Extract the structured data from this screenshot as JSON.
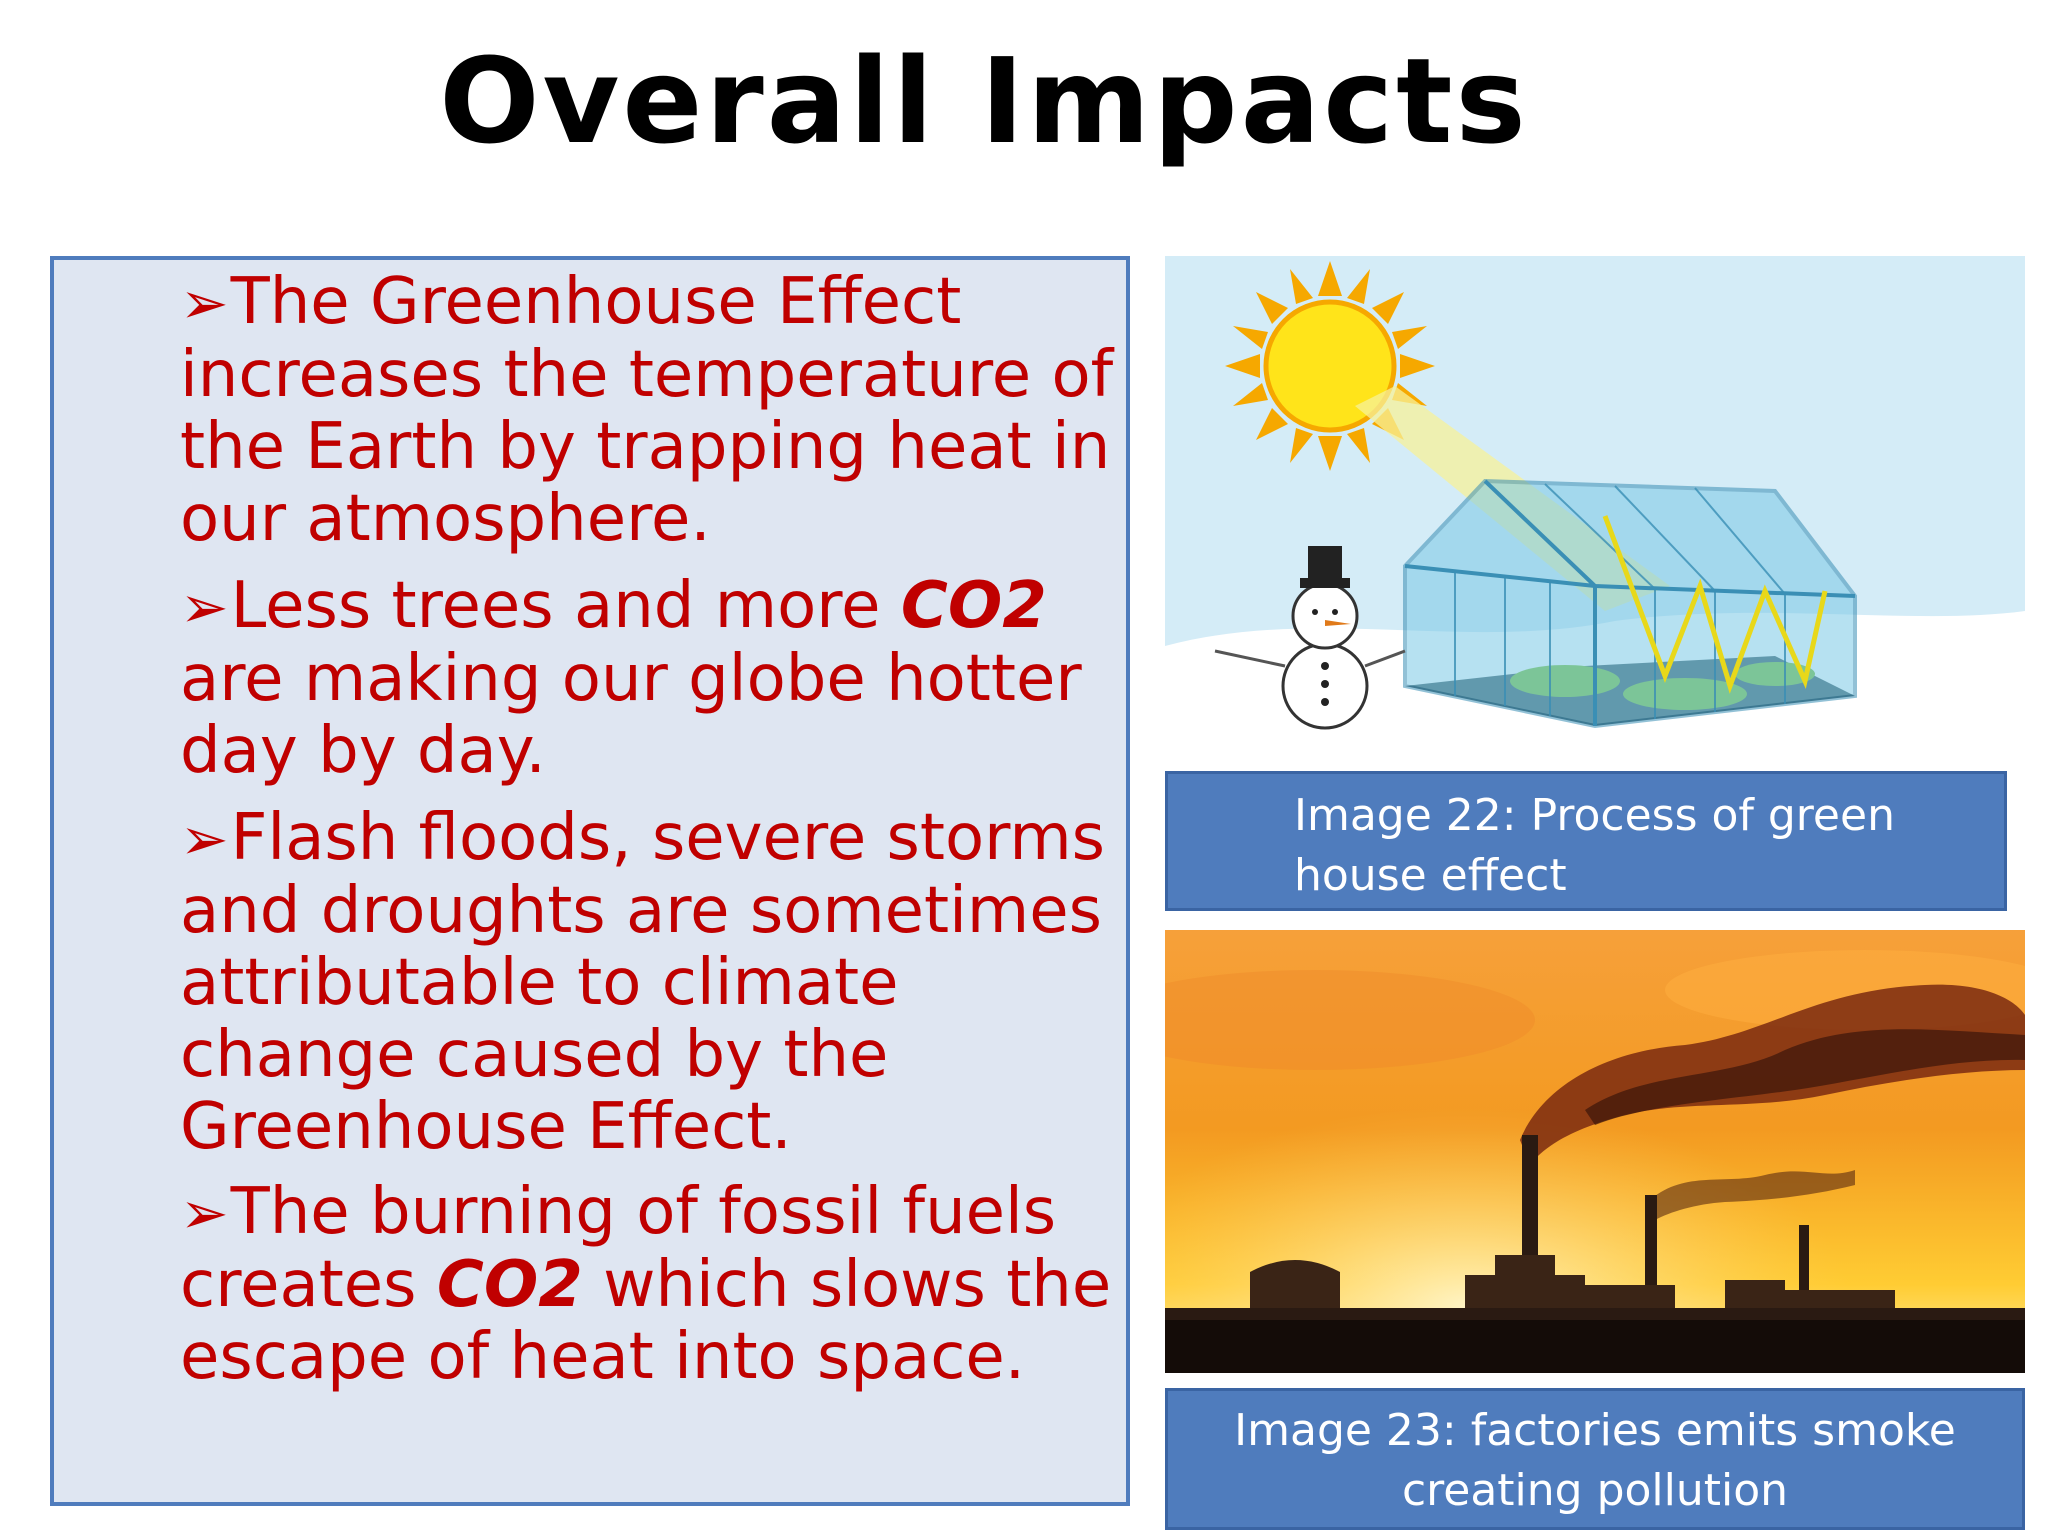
{
  "slide": {
    "title": "Overall Impacts",
    "bullets": [
      {
        "marker": "➢",
        "parts": [
          "The Greenhouse Effect increases the temperature of the Earth by trapping heat in our atmosphere."
        ]
      },
      {
        "marker": "➢",
        "parts": [
          "Less trees and more ",
          "CO2",
          " are making our globe hotter day by day."
        ]
      },
      {
        "marker": "➢",
        "parts": [
          "Flash floods, severe storms and droughts are sometimes attributable to climate change caused by the Greenhouse Effect."
        ]
      },
      {
        "marker": "➢",
        "parts": [
          "The burning of fossil fuels creates ",
          "CO2",
          " which slows the escape of heat into space."
        ]
      }
    ],
    "images": [
      {
        "icon": "greenhouse-illustration",
        "caption": "Image 22: Process of green house effect"
      },
      {
        "icon": "factory-smoke-photo",
        "caption": "Image 23: factories emits smoke creating pollution"
      }
    ],
    "colors": {
      "text": "#c00000",
      "panel": "#dfe6f2",
      "accent": "#4f7cbd"
    }
  }
}
